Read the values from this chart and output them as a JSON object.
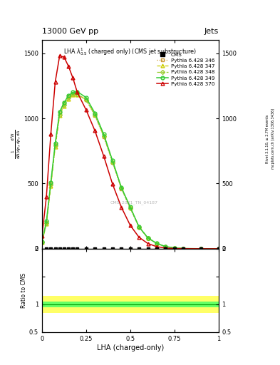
{
  "title_top": "13000 GeV pp",
  "title_right": "Jets",
  "plot_title": "LHA $\\lambda^{1}_{0.5}$ (charged only) (CMS jet substructure)",
  "xlabel": "LHA (charged-only)",
  "ylabel_ratio": "Ratio to CMS",
  "right_label": "Rivet 3.1.10, ≥ 2.7M events",
  "right_label2": "mcplots.cern.ch [arXiv:1306.3436]",
  "watermark": "CMS_2021_TN_04187",
  "lha_x": [
    0.0,
    0.025,
    0.05,
    0.075,
    0.1,
    0.125,
    0.15,
    0.175,
    0.2,
    0.25,
    0.3,
    0.35,
    0.4,
    0.45,
    0.5,
    0.55,
    0.6,
    0.65,
    0.7,
    0.75,
    0.8,
    0.9,
    1.0
  ],
  "p346_y": [
    50,
    200,
    500,
    800,
    1050,
    1120,
    1170,
    1190,
    1180,
    1140,
    1020,
    860,
    660,
    460,
    310,
    165,
    82,
    40,
    16,
    6,
    2,
    0.5,
    0
  ],
  "p347_y": [
    50,
    190,
    480,
    780,
    1020,
    1095,
    1150,
    1178,
    1182,
    1148,
    1028,
    870,
    668,
    468,
    318,
    168,
    84,
    41,
    17,
    6,
    2,
    0.5,
    0
  ],
  "p348_y": [
    50,
    195,
    490,
    790,
    1030,
    1105,
    1160,
    1185,
    1185,
    1143,
    1025,
    865,
    663,
    463,
    313,
    165,
    82,
    40,
    16,
    6,
    2,
    0.5,
    0
  ],
  "p349_y": [
    55,
    210,
    510,
    810,
    1050,
    1120,
    1175,
    1200,
    1205,
    1160,
    1040,
    878,
    675,
    470,
    320,
    168,
    84,
    41,
    17,
    6,
    2,
    0.5,
    0
  ],
  "p370_y": [
    100,
    400,
    880,
    1280,
    1480,
    1470,
    1400,
    1310,
    1200,
    1065,
    905,
    710,
    495,
    318,
    180,
    88,
    40,
    16,
    5,
    1.5,
    0.5,
    0,
    0
  ],
  "cms_x": [
    0.025,
    0.05,
    0.075,
    0.1,
    0.125,
    0.15,
    0.175,
    0.2,
    0.25,
    0.3,
    0.35,
    0.4,
    0.45,
    0.5,
    0.55,
    0.6,
    0.65,
    0.7,
    0.75,
    0.8,
    0.9,
    1.0
  ],
  "colors": {
    "cms": "#000000",
    "p346": "#cc9933",
    "p347": "#cccc00",
    "p348": "#99cc33",
    "p349": "#33cc33",
    "p370": "#cc0000"
  },
  "ylim_main": [
    0,
    1600
  ],
  "ylim_ratio": [
    0.5,
    2.0
  ],
  "ratio_band_inner": 0.05,
  "ratio_band_outer": 0.15
}
